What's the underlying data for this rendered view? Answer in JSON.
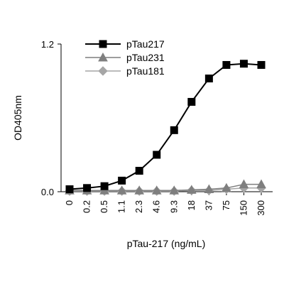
{
  "chart_data": {
    "type": "line",
    "title": "",
    "xlabel": "pTau-217 (ng/mL)",
    "ylabel": "OD405nm",
    "categories": [
      "0",
      "0.2",
      "0.5",
      "1.1",
      "2.3",
      "4.6",
      "9.3",
      "18",
      "37",
      "75",
      "150",
      "300"
    ],
    "ylim": [
      0,
      1.2
    ],
    "y_ticks": [
      "0.0",
      "1.2"
    ],
    "grid": false,
    "legend_position": "top-left",
    "series": [
      {
        "name": "pTau217",
        "marker": "square",
        "color": "#000000",
        "values": [
          0.02,
          0.03,
          0.045,
          0.09,
          0.17,
          0.3,
          0.5,
          0.73,
          0.92,
          1.03,
          1.04,
          1.03
        ]
      },
      {
        "name": "pTau231",
        "marker": "triangle",
        "color": "#7f7f7f",
        "values": [
          0.01,
          0.01,
          0.01,
          0.01,
          0.01,
          0.01,
          0.01,
          0.015,
          0.02,
          0.03,
          0.06,
          0.06
        ]
      },
      {
        "name": "pTau181",
        "marker": "diamond",
        "color": "#a6a6a6",
        "values": [
          0.005,
          0.005,
          0.005,
          0.005,
          0.005,
          0.005,
          0.005,
          0.01,
          0.01,
          0.02,
          0.03,
          0.03
        ]
      }
    ]
  }
}
